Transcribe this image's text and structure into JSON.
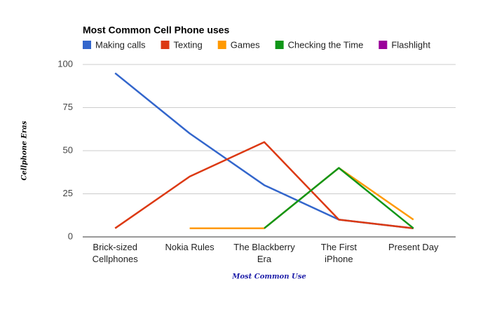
{
  "chart_data": {
    "type": "line",
    "title": "Most Common Cell Phone uses",
    "x_label": "Most Common Use",
    "y_label": "Cellphone Eras",
    "categories": [
      "Brick-sized Cellphones",
      "Nokia Rules",
      "The Blackberry Era",
      "The First iPhone",
      "Present Day"
    ],
    "series": [
      {
        "name": "Making calls",
        "color": "#3366cc",
        "values": [
          95,
          60,
          30,
          10,
          5
        ]
      },
      {
        "name": "Texting",
        "color": "#dc3912",
        "values": [
          5,
          35,
          55,
          10,
          5
        ]
      },
      {
        "name": "Games",
        "color": "#ff9900",
        "values": [
          null,
          5,
          5,
          40,
          10
        ]
      },
      {
        "name": "Checking the Time",
        "color": "#109618",
        "values": [
          null,
          null,
          5,
          40,
          5
        ]
      },
      {
        "name": "Flashlight",
        "color": "#990099",
        "values": [
          null,
          null,
          null,
          null,
          null
        ]
      }
    ],
    "ylim": [
      0,
      100
    ],
    "yticks": [
      0,
      25,
      50,
      75,
      100
    ],
    "grid": true
  }
}
